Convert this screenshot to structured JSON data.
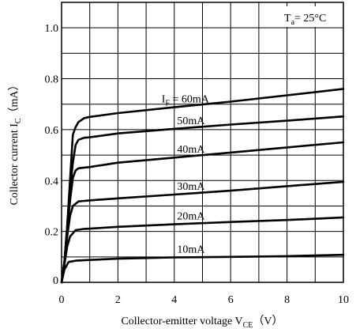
{
  "chart_data": {
    "type": "line",
    "title": "",
    "xlabel": {
      "main": "Collector-emitter voltage V",
      "sub": "CE",
      "unit": "（V）"
    },
    "ylabel": {
      "main": "Collector current I",
      "sub": "C",
      "unit": "（mA）"
    },
    "xlim": [
      0,
      10
    ],
    "ylim": [
      0,
      1.1
    ],
    "x_ticks": [
      {
        "value": 0,
        "label": "0"
      },
      {
        "value": 2,
        "label": "2"
      },
      {
        "value": 4,
        "label": "4"
      },
      {
        "value": 6,
        "label": "6"
      },
      {
        "value": 8,
        "label": "8"
      },
      {
        "value": 10,
        "label": "10"
      }
    ],
    "y_ticks": [
      {
        "value": 0,
        "label": "0"
      },
      {
        "value": 0.2,
        "label": "0.2"
      },
      {
        "value": 0.4,
        "label": "0.4"
      },
      {
        "value": 0.6,
        "label": "0.6"
      },
      {
        "value": 0.8,
        "label": "0.8"
      },
      {
        "value": 1.0,
        "label": "1.0"
      }
    ],
    "grid": true,
    "annotation": {
      "main": "T",
      "sub": "a",
      "rest": "= 25°C"
    },
    "series": [
      {
        "name": "10mA",
        "x": [
          0,
          0.1,
          0.25,
          0.5,
          1,
          2,
          4,
          6,
          8,
          10
        ],
        "y": [
          0,
          0.05,
          0.08,
          0.085,
          0.088,
          0.093,
          0.098,
          0.1,
          0.103,
          0.108
        ]
      },
      {
        "name": "20mA",
        "x": [
          0,
          0.1,
          0.2,
          0.3,
          0.5,
          0.8,
          1,
          2,
          4,
          6,
          8,
          10
        ],
        "y": [
          0,
          0.07,
          0.14,
          0.18,
          0.205,
          0.21,
          0.211,
          0.218,
          0.228,
          0.237,
          0.245,
          0.255
        ]
      },
      {
        "name": "30mA",
        "x": [
          0,
          0.1,
          0.2,
          0.3,
          0.4,
          0.6,
          0.8,
          1,
          2,
          4,
          6,
          8,
          10
        ],
        "y": [
          0,
          0.08,
          0.18,
          0.26,
          0.3,
          0.318,
          0.32,
          0.322,
          0.33,
          0.345,
          0.36,
          0.378,
          0.395
        ]
      },
      {
        "name": "40mA",
        "x": [
          0,
          0.1,
          0.2,
          0.3,
          0.4,
          0.5,
          0.6,
          0.8,
          1,
          2,
          4,
          6,
          8,
          10
        ],
        "y": [
          0,
          0.08,
          0.2,
          0.32,
          0.41,
          0.44,
          0.448,
          0.451,
          0.453,
          0.47,
          0.49,
          0.51,
          0.53,
          0.55
        ]
      },
      {
        "name": "50mA",
        "x": [
          0,
          0.1,
          0.2,
          0.3,
          0.4,
          0.5,
          0.6,
          0.8,
          1,
          2,
          4,
          6,
          8,
          10
        ],
        "y": [
          0,
          0.08,
          0.22,
          0.36,
          0.47,
          0.54,
          0.56,
          0.568,
          0.57,
          0.585,
          0.603,
          0.62,
          0.635,
          0.652
        ]
      },
      {
        "name": "60mA",
        "x": [
          0,
          0.1,
          0.2,
          0.3,
          0.4,
          0.5,
          0.6,
          0.8,
          1,
          2,
          4,
          6,
          8,
          10
        ],
        "y": [
          0,
          0.08,
          0.22,
          0.4,
          0.58,
          0.61,
          0.63,
          0.645,
          0.65,
          0.665,
          0.688,
          0.71,
          0.735,
          0.76
        ]
      }
    ],
    "label_prefix": {
      "main": "I",
      "sub": "F",
      "rest": " = "
    }
  }
}
